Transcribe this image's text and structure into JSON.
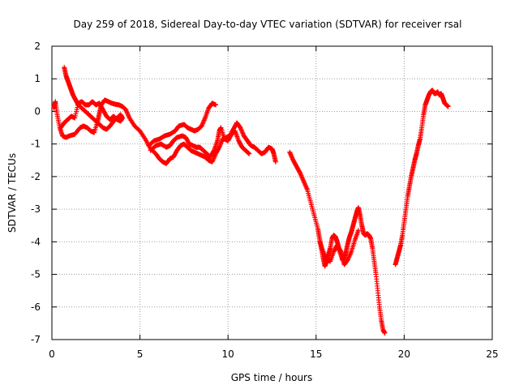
{
  "chart_data": {
    "type": "scatter",
    "title": "Day 259 of 2018, Sidereal Day-to-day VTEC variation (SDTVAR) for receiver rsal",
    "xlabel": "GPS time / hours",
    "ylabel": "SDTVAR / TECUs",
    "xlim": [
      0,
      25
    ],
    "ylim": [
      -7,
      2
    ],
    "xticks": [
      0,
      5,
      10,
      15,
      20,
      25
    ],
    "yticks": [
      -7,
      -6,
      -5,
      -4,
      -3,
      -2,
      -1,
      0,
      1,
      2
    ],
    "grid": true,
    "legend": "none",
    "marker": "+",
    "color": "#ff0000",
    "segments": [
      {
        "points": [
          [
            0.1,
            0.1
          ],
          [
            0.2,
            0.3
          ],
          [
            0.3,
            -0.1
          ],
          [
            0.45,
            -0.5
          ],
          [
            0.6,
            -0.75
          ],
          [
            0.8,
            -0.8
          ],
          [
            1.0,
            -0.75
          ],
          [
            1.3,
            -0.7
          ],
          [
            1.6,
            -0.5
          ],
          [
            1.8,
            -0.45
          ],
          [
            2.0,
            -0.5
          ],
          [
            2.2,
            -0.6
          ],
          [
            2.4,
            -0.65
          ],
          [
            2.6,
            -0.3
          ],
          [
            2.7,
            -0.05
          ],
          [
            2.8,
            0.2
          ],
          [
            3.0,
            0.35
          ],
          [
            3.2,
            0.3
          ],
          [
            3.4,
            0.25
          ],
          [
            3.6,
            0.22
          ],
          [
            3.8,
            0.2
          ],
          [
            4.0,
            0.15
          ],
          [
            4.2,
            0.05
          ],
          [
            4.4,
            -0.2
          ],
          [
            4.7,
            -0.45
          ],
          [
            5.0,
            -0.6
          ],
          [
            5.3,
            -0.85
          ],
          [
            5.6,
            -1.15
          ],
          [
            5.9,
            -1.3
          ],
          [
            6.1,
            -1.45
          ],
          [
            6.3,
            -1.55
          ],
          [
            6.5,
            -1.6
          ],
          [
            6.7,
            -1.45
          ],
          [
            6.9,
            -1.4
          ],
          [
            7.1,
            -1.2
          ],
          [
            7.3,
            -1.05
          ],
          [
            7.5,
            -1.0
          ],
          [
            7.7,
            -1.1
          ],
          [
            7.9,
            -1.2
          ],
          [
            8.1,
            -1.25
          ],
          [
            8.3,
            -1.3
          ],
          [
            8.5,
            -1.35
          ],
          [
            8.7,
            -1.4
          ],
          [
            8.9,
            -1.5
          ],
          [
            9.1,
            -1.55
          ],
          [
            9.3,
            -1.3
          ],
          [
            9.5,
            -1.1
          ],
          [
            9.7,
            -0.85
          ],
          [
            9.9,
            -0.8
          ],
          [
            10.1,
            -0.75
          ],
          [
            10.3,
            -0.55
          ],
          [
            10.5,
            -0.35
          ],
          [
            10.7,
            -0.5
          ],
          [
            10.9,
            -0.75
          ],
          [
            11.1,
            -0.9
          ],
          [
            11.3,
            -1.05
          ],
          [
            11.5,
            -1.1
          ],
          [
            11.7,
            -1.2
          ],
          [
            11.9,
            -1.3
          ],
          [
            12.1,
            -1.25
          ],
          [
            12.3,
            -1.1
          ],
          [
            12.5,
            -1.15
          ],
          [
            12.6,
            -1.3
          ],
          [
            12.7,
            -1.55
          ]
        ]
      },
      {
        "points": [
          [
            0.7,
            1.35
          ],
          [
            0.8,
            1.1
          ],
          [
            0.9,
            0.95
          ],
          [
            1.0,
            0.8
          ],
          [
            1.1,
            0.65
          ],
          [
            1.2,
            0.5
          ],
          [
            1.35,
            0.35
          ],
          [
            1.5,
            0.2
          ],
          [
            1.7,
            0.1
          ],
          [
            1.9,
            0.0
          ],
          [
            2.1,
            -0.1
          ],
          [
            2.3,
            -0.2
          ],
          [
            2.5,
            -0.3
          ],
          [
            2.7,
            -0.4
          ],
          [
            2.9,
            -0.5
          ],
          [
            3.1,
            -0.55
          ],
          [
            3.3,
            -0.45
          ],
          [
            3.5,
            -0.3
          ],
          [
            3.7,
            -0.2
          ],
          [
            3.9,
            -0.1
          ],
          [
            4.0,
            -0.2
          ]
        ]
      },
      {
        "points": [
          [
            0.5,
            -0.5
          ],
          [
            0.7,
            -0.35
          ],
          [
            0.9,
            -0.25
          ],
          [
            1.1,
            -0.15
          ],
          [
            1.3,
            -0.2
          ],
          [
            1.5,
            0.25
          ],
          [
            1.7,
            0.3
          ],
          [
            1.9,
            0.2
          ],
          [
            2.1,
            0.2
          ],
          [
            2.3,
            0.3
          ],
          [
            2.5,
            0.2
          ],
          [
            2.7,
            0.25
          ],
          [
            2.9,
            0.05
          ],
          [
            3.1,
            -0.15
          ],
          [
            3.3,
            -0.25
          ],
          [
            3.5,
            -0.15
          ],
          [
            3.7,
            -0.25
          ],
          [
            3.9,
            -0.3
          ],
          [
            4.0,
            -0.2
          ]
        ]
      },
      {
        "points": [
          [
            5.5,
            -1.05
          ],
          [
            5.8,
            -0.9
          ],
          [
            6.1,
            -0.85
          ],
          [
            6.4,
            -0.75
          ],
          [
            6.7,
            -0.7
          ],
          [
            7.0,
            -0.6
          ],
          [
            7.2,
            -0.45
          ],
          [
            7.5,
            -0.4
          ],
          [
            7.7,
            -0.5
          ],
          [
            7.9,
            -0.55
          ],
          [
            8.1,
            -0.6
          ],
          [
            8.3,
            -0.55
          ],
          [
            8.5,
            -0.45
          ],
          [
            8.7,
            -0.2
          ],
          [
            8.9,
            0.1
          ],
          [
            9.1,
            0.25
          ],
          [
            9.3,
            0.2
          ]
        ]
      },
      {
        "points": [
          [
            5.6,
            -1.2
          ],
          [
            5.9,
            -1.05
          ],
          [
            6.2,
            -1.0
          ],
          [
            6.5,
            -1.1
          ],
          [
            6.7,
            -1.05
          ],
          [
            6.9,
            -0.9
          ],
          [
            7.1,
            -0.8
          ],
          [
            7.4,
            -0.75
          ],
          [
            7.6,
            -0.8
          ],
          [
            7.8,
            -1.0
          ],
          [
            8.0,
            -1.05
          ],
          [
            8.2,
            -1.1
          ],
          [
            8.4,
            -1.1
          ],
          [
            8.6,
            -1.2
          ],
          [
            8.8,
            -1.3
          ],
          [
            9.0,
            -1.4
          ],
          [
            9.2,
            -1.2
          ],
          [
            9.4,
            -0.9
          ],
          [
            9.5,
            -0.6
          ],
          [
            9.6,
            -0.5
          ],
          [
            9.8,
            -0.85
          ],
          [
            10.0,
            -0.9
          ],
          [
            10.2,
            -0.7
          ],
          [
            10.4,
            -0.6
          ],
          [
            10.6,
            -0.9
          ],
          [
            10.8,
            -1.1
          ],
          [
            11.0,
            -1.2
          ],
          [
            11.2,
            -1.3
          ]
        ]
      },
      {
        "points": [
          [
            13.5,
            -1.25
          ],
          [
            13.7,
            -1.5
          ],
          [
            13.9,
            -1.7
          ],
          [
            14.1,
            -1.9
          ],
          [
            14.3,
            -2.15
          ],
          [
            14.5,
            -2.4
          ],
          [
            14.7,
            -2.8
          ],
          [
            14.9,
            -3.2
          ],
          [
            15.1,
            -3.6
          ],
          [
            15.2,
            -3.9
          ],
          [
            15.3,
            -4.2
          ],
          [
            15.4,
            -4.5
          ],
          [
            15.5,
            -4.75
          ],
          [
            15.6,
            -4.6
          ],
          [
            15.7,
            -4.4
          ],
          [
            15.8,
            -4.2
          ],
          [
            15.9,
            -3.9
          ],
          [
            16.0,
            -3.8
          ],
          [
            16.1,
            -3.85
          ],
          [
            16.2,
            -4.0
          ],
          [
            16.3,
            -4.2
          ],
          [
            16.4,
            -4.3
          ],
          [
            16.5,
            -4.55
          ],
          [
            16.6,
            -4.5
          ],
          [
            16.7,
            -4.3
          ],
          [
            16.8,
            -4.05
          ],
          [
            16.9,
            -3.85
          ],
          [
            17.0,
            -3.7
          ],
          [
            17.1,
            -3.5
          ],
          [
            17.2,
            -3.3
          ],
          [
            17.3,
            -3.1
          ],
          [
            17.4,
            -2.95
          ],
          [
            17.5,
            -3.2
          ],
          [
            17.6,
            -3.5
          ],
          [
            17.7,
            -3.75
          ],
          [
            17.8,
            -3.8
          ],
          [
            17.9,
            -3.75
          ],
          [
            18.0,
            -3.8
          ],
          [
            18.1,
            -3.9
          ],
          [
            18.2,
            -4.2
          ],
          [
            18.3,
            -4.6
          ],
          [
            18.4,
            -5.0
          ],
          [
            18.5,
            -5.5
          ],
          [
            18.6,
            -6.0
          ],
          [
            18.7,
            -6.4
          ],
          [
            18.8,
            -6.7
          ],
          [
            18.9,
            -6.8
          ]
        ]
      },
      {
        "points": [
          [
            15.2,
            -4.0
          ],
          [
            15.4,
            -4.3
          ],
          [
            15.6,
            -4.55
          ],
          [
            15.8,
            -4.6
          ],
          [
            16.0,
            -4.3
          ],
          [
            16.2,
            -4.1
          ],
          [
            16.4,
            -4.4
          ],
          [
            16.6,
            -4.7
          ],
          [
            16.8,
            -4.55
          ],
          [
            17.0,
            -4.3
          ],
          [
            17.2,
            -3.95
          ],
          [
            17.4,
            -3.65
          ]
        ]
      },
      {
        "points": [
          [
            19.5,
            -4.7
          ],
          [
            19.6,
            -4.5
          ],
          [
            19.7,
            -4.3
          ],
          [
            19.8,
            -4.1
          ],
          [
            19.9,
            -3.8
          ],
          [
            20.0,
            -3.4
          ],
          [
            20.1,
            -3.0
          ],
          [
            20.2,
            -2.6
          ],
          [
            20.3,
            -2.3
          ],
          [
            20.4,
            -2.0
          ],
          [
            20.5,
            -1.75
          ],
          [
            20.6,
            -1.5
          ],
          [
            20.7,
            -1.3
          ],
          [
            20.8,
            -1.05
          ],
          [
            20.9,
            -0.85
          ],
          [
            21.0,
            -0.5
          ],
          [
            21.1,
            -0.1
          ],
          [
            21.2,
            0.2
          ],
          [
            21.3,
            0.35
          ],
          [
            21.4,
            0.5
          ],
          [
            21.5,
            0.6
          ],
          [
            21.6,
            0.65
          ],
          [
            21.7,
            0.55
          ],
          [
            21.8,
            0.55
          ],
          [
            21.9,
            0.6
          ],
          [
            22.0,
            0.5
          ],
          [
            22.1,
            0.55
          ],
          [
            22.2,
            0.4
          ],
          [
            22.3,
            0.25
          ],
          [
            22.4,
            0.2
          ],
          [
            22.5,
            0.15
          ]
        ]
      }
    ]
  }
}
